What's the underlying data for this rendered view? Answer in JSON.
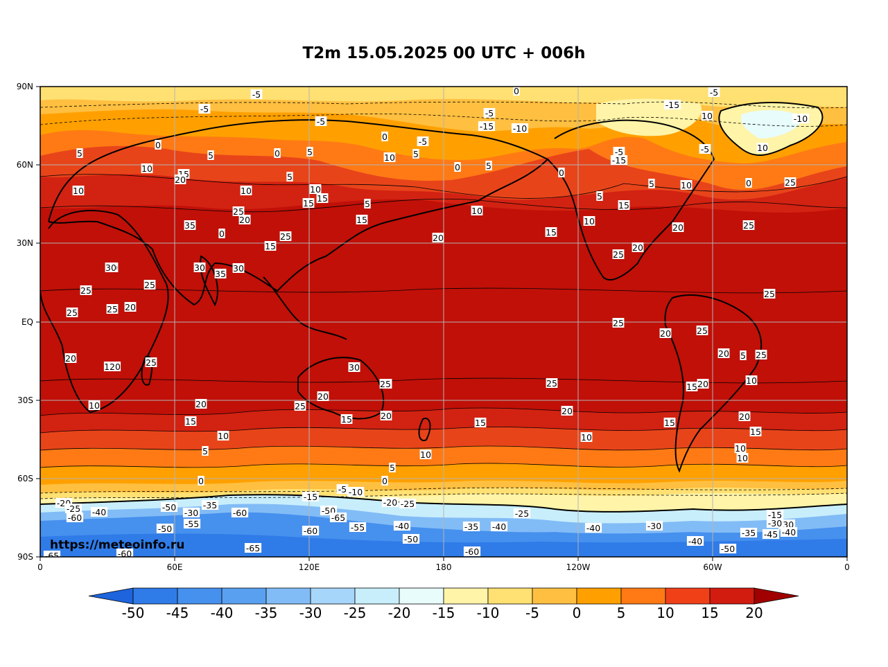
{
  "title": "T2m 15.05.2025 00 UTC + 006h",
  "watermark": "https://meteoinfo.ru",
  "colors": {
    "frame": "#000000",
    "grid": "#b4b4b4",
    "land_outline": "#000000"
  },
  "lat_labels": [
    "90N",
    "60N",
    "30N",
    "EQ",
    "30S",
    "60S",
    "90S"
  ],
  "lon_labels": [
    "0",
    "60E",
    "120E",
    "180",
    "120W",
    "60W",
    "0"
  ],
  "colorbar": {
    "levels": [
      "-50",
      "-45",
      "-40",
      "-35",
      "-30",
      "-25",
      "-20",
      "-15",
      "-10",
      "-5",
      "0",
      "5",
      "10",
      "15",
      "20"
    ],
    "colors": [
      "#1e64dc",
      "#2f7be8",
      "#4690ee",
      "#5aa0f0",
      "#82bcf6",
      "#a6d6fa",
      "#c8eefc",
      "#e8fcfc",
      "#fff4a8",
      "#ffe072",
      "#ffbf40",
      "#ffa000",
      "#ff7a14",
      "#f04018",
      "#d21c10",
      "#a00000"
    ]
  },
  "contour_labels": {
    "note_none": "",
    "north": [
      "-5",
      "0",
      "-5",
      "-5",
      "-5",
      "-5",
      "-15",
      "-10",
      "-15",
      "10",
      "-10",
      "0",
      "-5",
      "-15",
      "-5",
      "5",
      "0",
      "5",
      "0",
      "5",
      "10",
      "5",
      "0",
      "5",
      "0",
      "-5",
      "10",
      "15",
      "20",
      "10",
      "10",
      "5",
      "5",
      "10",
      "5",
      "15",
      "10",
      "15",
      "25",
      "10",
      "0",
      "5",
      "15",
      "20",
      "10",
      "15",
      "25",
      "20",
      "10",
      "15",
      "35",
      "25",
      "0",
      "30",
      "35",
      "30",
      "15",
      "25",
      "20",
      "25",
      "30",
      "20",
      "25"
    ],
    "equator": [
      "25",
      "30",
      "25",
      "25",
      "20",
      "30",
      "25",
      "25",
      "20",
      "25",
      "25"
    ],
    "south": [
      "20",
      "120",
      "25",
      "10",
      "20",
      "15",
      "10",
      "5",
      "0",
      "20",
      "30",
      "25",
      "25",
      "15",
      "20",
      "15",
      "10",
      "5",
      "0",
      "25",
      "20",
      "15",
      "10",
      "10",
      "20",
      "10",
      "15",
      "20",
      "10",
      "5",
      "20",
      "25",
      "15"
    ],
    "antarctic": [
      "-20",
      "-25",
      "-60",
      "-40",
      "-50",
      "-30",
      "-35",
      "-60",
      "-65",
      "-55",
      "-15",
      "-5",
      "-10",
      "-20",
      "-25",
      "-50",
      "-65",
      "-60",
      "-55",
      "-40",
      "-50",
      "-35",
      "-40",
      "-25",
      "-40",
      "-30",
      "-40",
      "-30",
      "-45",
      "-40",
      "-15",
      "-30",
      "-35",
      "-60",
      "-65",
      "-50",
      "-60",
      "-65",
      "-50"
    ]
  }
}
